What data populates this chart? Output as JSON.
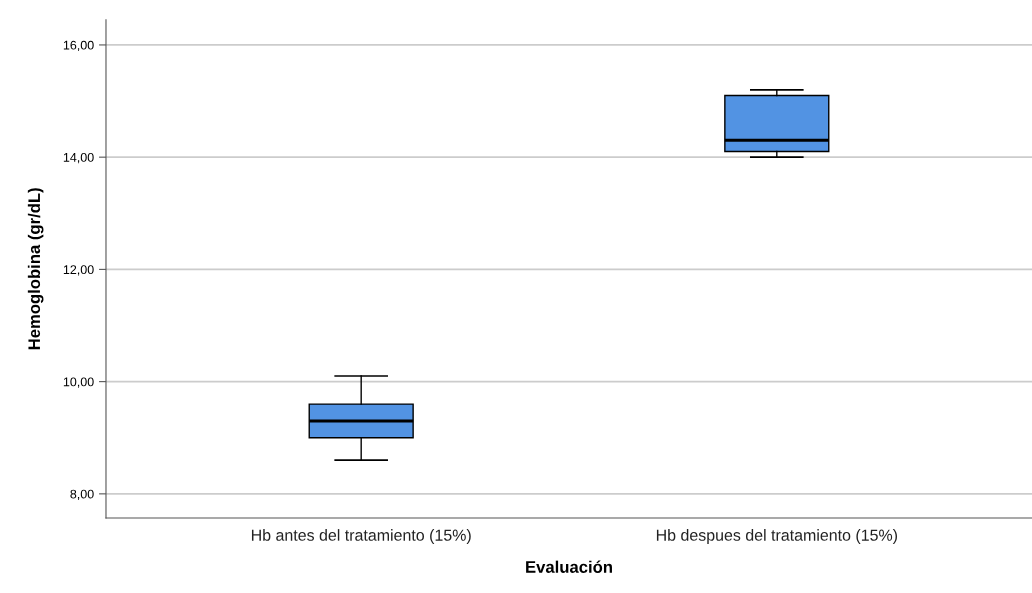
{
  "chart_data": {
    "type": "box",
    "xlabel": "Evaluación",
    "ylabel": "Hemoglobina (gr/dL)",
    "categories": [
      "Hb antes del tratamiento (15%)",
      "Hb despues del tratamiento (15%)"
    ],
    "series": [
      {
        "color": "#5293e3",
        "boxes": [
          {
            "low": 8.6,
            "q1": 9.0,
            "median": 9.3,
            "q3": 9.6,
            "high": 10.1
          },
          {
            "low": 14.0,
            "q1": 14.1,
            "median": 14.3,
            "q3": 15.1,
            "high": 15.2
          }
        ]
      }
    ],
    "ylim": [
      7.57,
      16.45
    ],
    "yticks": [
      {
        "value": 8,
        "label": "8,00"
      },
      {
        "value": 10,
        "label": "10,00"
      },
      {
        "value": 12,
        "label": "12,00"
      },
      {
        "value": 14,
        "label": "14,00"
      },
      {
        "value": 16,
        "label": "16,00"
      }
    ],
    "grid": "y",
    "legend": false
  }
}
